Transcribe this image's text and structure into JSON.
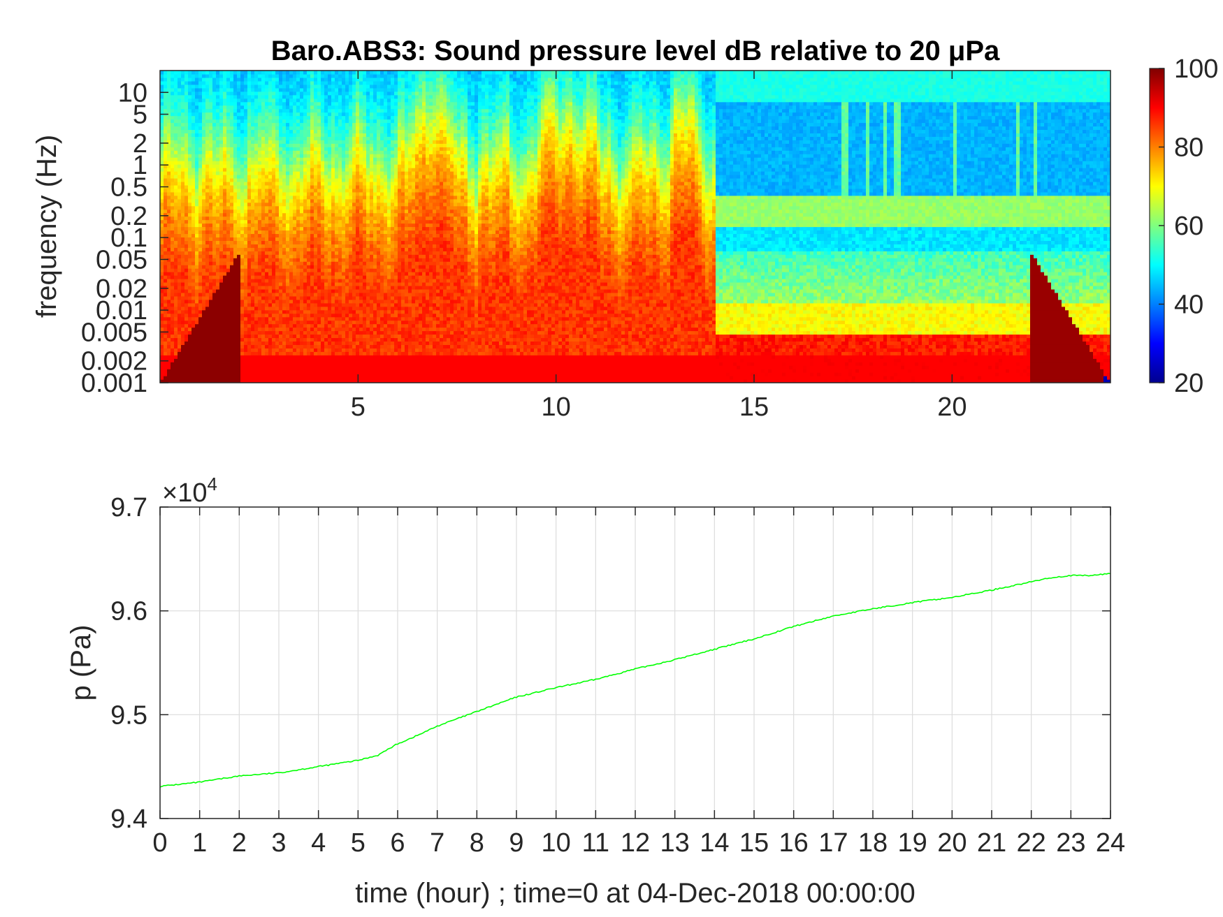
{
  "chart_data": [
    {
      "type": "heatmap",
      "title": "Baro.ABS3: Sound pressure level dB relative to 20 μPa",
      "ylabel": "frequency (Hz)",
      "xlim": [
        0,
        24
      ],
      "x_ticks": [
        5,
        10,
        15,
        20
      ],
      "y_scale": "log",
      "ylim": [
        0.001,
        20
      ],
      "y_ticks": [
        {
          "value": 10,
          "label": "10"
        },
        {
          "value": 5,
          "label": "5"
        },
        {
          "value": 2,
          "label": "2"
        },
        {
          "value": 1,
          "label": "1"
        },
        {
          "value": 0.5,
          "label": "0.5"
        },
        {
          "value": 0.2,
          "label": "0.2"
        },
        {
          "value": 0.1,
          "label": "0.1"
        },
        {
          "value": 0.05,
          "label": "0.05"
        },
        {
          "value": 0.02,
          "label": "0.02"
        },
        {
          "value": 0.01,
          "label": "0.01"
        },
        {
          "value": 0.005,
          "label": "0.005"
        },
        {
          "value": 0.002,
          "label": "0.002"
        },
        {
          "value": 0.001,
          "label": "0.001"
        }
      ],
      "colorbar": {
        "colormap": "jet",
        "range": [
          20,
          100
        ],
        "ticks": [
          {
            "value": 100,
            "label": "100"
          },
          {
            "value": 80,
            "label": "80"
          },
          {
            "value": 60,
            "label": "60"
          },
          {
            "value": 40,
            "label": "40"
          },
          {
            "value": 20,
            "label": "20"
          }
        ]
      },
      "features": [
        {
          "time_range": [
            0,
            14
          ],
          "desc": "high levels 80-100 dB below ~0.2 Hz, bursts to 10 Hz near 6.5-7.5 h and 10-11 h"
        },
        {
          "time_range": [
            14,
            24
          ],
          "desc": "quieter 40-55 dB above 0.5 Hz, red band 85-95 dB below 0.005 Hz"
        }
      ]
    },
    {
      "type": "line",
      "xlabel": "time (hour) ; time=0 at 04-Dec-2018 00:00:00",
      "ylabel": "p (Pa)",
      "y_multiplier": "×10",
      "y_multiplier_exp": "4",
      "xlim": [
        0,
        24
      ],
      "ylim": [
        9.4,
        9.7
      ],
      "x_ticks": [
        0,
        1,
        2,
        3,
        4,
        5,
        6,
        7,
        8,
        9,
        10,
        11,
        12,
        13,
        14,
        15,
        16,
        17,
        18,
        19,
        20,
        21,
        22,
        23,
        24
      ],
      "y_ticks": [
        {
          "value": 9.4,
          "label": "9.4"
        },
        {
          "value": 9.5,
          "label": "9.5"
        },
        {
          "value": 9.6,
          "label": "9.6"
        },
        {
          "value": 9.7,
          "label": "9.7"
        }
      ],
      "grid": true,
      "series": [
        {
          "color": "#00ff00",
          "x": [
            0,
            1,
            2,
            3,
            4,
            5,
            5.5,
            6,
            6.5,
            7,
            7.5,
            8,
            9,
            10,
            11,
            12,
            13,
            14,
            15,
            16,
            17,
            18,
            19,
            20,
            21,
            22,
            22.5,
            23,
            23.5,
            24
          ],
          "y": [
            9.431,
            9.435,
            9.441,
            9.444,
            9.45,
            9.456,
            9.461,
            9.472,
            9.48,
            9.489,
            9.496,
            9.503,
            9.517,
            9.526,
            9.534,
            9.544,
            9.553,
            9.563,
            9.573,
            9.585,
            9.595,
            9.602,
            9.608,
            9.613,
            9.62,
            9.628,
            9.632,
            9.634,
            9.634,
            9.636
          ]
        }
      ]
    }
  ]
}
